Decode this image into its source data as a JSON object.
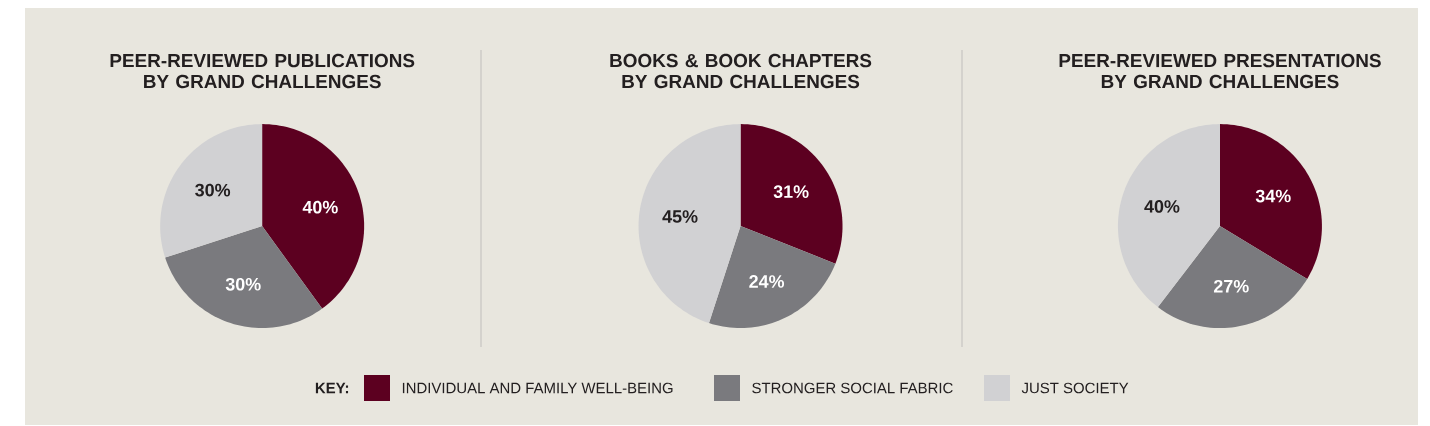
{
  "chart_data": [
    {
      "type": "pie",
      "title": "PEER-REVIEWED PUBLICATIONS BY GRAND CHALLENGES",
      "categories": [
        null,
        null,
        null
      ],
      "values": [
        40,
        30,
        30
      ],
      "value_labels": [
        "40%",
        "30%",
        "30%"
      ],
      "colors": [
        "#5c0020",
        "#7a7a7e",
        "#d1d1d3"
      ]
    },
    {
      "type": "pie",
      "title": "BOOKS & BOOK CHAPTERS BY GRAND CHALLENGES",
      "categories": [
        "INDIVIDUAL AND FAMILY WELL-BEING",
        "STRONGER SOCIAL FABRIC",
        "JUST SOCIETY"
      ],
      "values": [
        31,
        24,
        45
      ],
      "value_labels": [
        "31%",
        "24%",
        "45%"
      ],
      "colors": [
        "#5c0020",
        "#7a7a7e",
        "#d1d1d3"
      ],
      "legend": "bottom",
      "legend_title": "KEY:"
    },
    {
      "type": "pie",
      "title": "PEER-REVIEWED PRESENTATIONS BY GRAND CHALLENGES",
      "categories": [
        null,
        null,
        null
      ],
      "values": [
        34,
        27,
        40
      ],
      "value_labels": [
        "34%",
        "27%",
        "40%"
      ],
      "colors": [
        "#5c0020",
        "#7a7a7e",
        "#d1d1d3"
      ]
    }
  ]
}
